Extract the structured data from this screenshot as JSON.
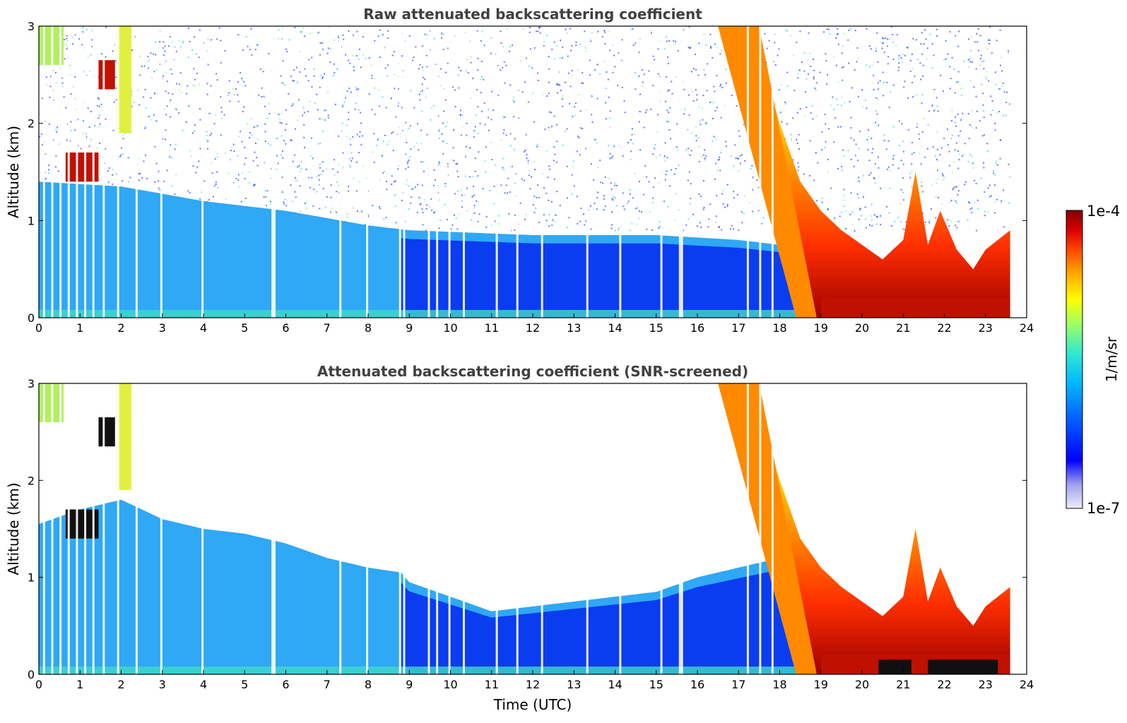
{
  "chart_data": [
    {
      "type": "heatmap",
      "title": "Raw attenuated backscattering coefficient",
      "xlabel": "",
      "ylabel": "Altitude (km)",
      "xlim": [
        0,
        24
      ],
      "ylim": [
        0,
        3
      ],
      "xticks": [
        "0",
        "1",
        "2",
        "3",
        "4",
        "5",
        "6",
        "7",
        "8",
        "9",
        "10",
        "11",
        "12",
        "13",
        "14",
        "15",
        "16",
        "17",
        "18",
        "19",
        "20",
        "21",
        "22",
        "23",
        "24"
      ],
      "yticks": [
        "0",
        "1",
        "2",
        "3"
      ],
      "data_end_hour": 23.6,
      "screened": false,
      "mixing_layer_top_km": [
        [
          0,
          1.4
        ],
        [
          2,
          1.35
        ],
        [
          4,
          1.2
        ],
        [
          6,
          1.1
        ],
        [
          8,
          0.95
        ],
        [
          9,
          0.9
        ],
        [
          12,
          0.85
        ],
        [
          15,
          0.85
        ],
        [
          17,
          0.8
        ],
        [
          18,
          0.75
        ]
      ],
      "plume_top_km": [
        [
          16.5,
          3.0
        ],
        [
          17.5,
          2.7
        ],
        [
          18.0,
          2.0
        ],
        [
          18.5,
          1.4
        ],
        [
          19.0,
          1.1
        ],
        [
          19.5,
          0.9
        ],
        [
          20.0,
          0.75
        ],
        [
          20.5,
          0.6
        ],
        [
          21.0,
          0.8
        ],
        [
          21.3,
          1.5
        ],
        [
          21.6,
          0.75
        ],
        [
          21.9,
          1.1
        ],
        [
          22.3,
          0.7
        ],
        [
          22.7,
          0.5
        ],
        [
          23.0,
          0.7
        ],
        [
          23.6,
          0.9
        ]
      ]
    },
    {
      "type": "heatmap",
      "title": "Attenuated backscattering coefficient (SNR-screened)",
      "xlabel": "Time (UTC)",
      "ylabel": "Altitude (km)",
      "xlim": [
        0,
        24
      ],
      "ylim": [
        0,
        3
      ],
      "xticks": [
        "0",
        "1",
        "2",
        "3",
        "4",
        "5",
        "6",
        "7",
        "8",
        "9",
        "10",
        "11",
        "12",
        "13",
        "14",
        "15",
        "16",
        "17",
        "18",
        "19",
        "20",
        "21",
        "22",
        "23",
        "24"
      ],
      "yticks": [
        "0",
        "1",
        "2",
        "3"
      ],
      "data_end_hour": 23.6,
      "screened": true,
      "mixing_layer_top_km": [
        [
          0,
          1.55
        ],
        [
          1,
          1.7
        ],
        [
          2,
          1.8
        ],
        [
          3,
          1.6
        ],
        [
          4,
          1.5
        ],
        [
          5,
          1.45
        ],
        [
          6,
          1.35
        ],
        [
          7,
          1.2
        ],
        [
          8,
          1.1
        ],
        [
          8.8,
          1.05
        ],
        [
          9,
          0.95
        ],
        [
          10,
          0.8
        ],
        [
          11,
          0.65
        ],
        [
          12,
          0.7
        ],
        [
          13,
          0.75
        ],
        [
          14,
          0.8
        ],
        [
          15,
          0.85
        ],
        [
          16,
          1.0
        ],
        [
          17,
          1.1
        ],
        [
          18,
          1.2
        ]
      ],
      "plume_top_km": [
        [
          16.5,
          3.0
        ],
        [
          17.5,
          2.7
        ],
        [
          18.0,
          2.0
        ],
        [
          18.5,
          1.4
        ],
        [
          19.0,
          1.1
        ],
        [
          19.5,
          0.9
        ],
        [
          20.0,
          0.75
        ],
        [
          20.5,
          0.6
        ],
        [
          21.0,
          0.8
        ],
        [
          21.3,
          1.5
        ],
        [
          21.6,
          0.75
        ],
        [
          21.9,
          1.1
        ],
        [
          22.3,
          0.7
        ],
        [
          22.7,
          0.5
        ],
        [
          23.0,
          0.7
        ],
        [
          23.6,
          0.9
        ]
      ]
    }
  ],
  "colorbar": {
    "label": "1/m/sr",
    "max_label": "1e-4",
    "min_label": "1e-7",
    "colors": [
      "#e6e6f5",
      "#c8c8f0",
      "#9b9bf0",
      "#5050f5",
      "#0000ff",
      "#0050ff",
      "#00a0ff",
      "#20c8ff",
      "#40e0d0",
      "#80ff80",
      "#d0ff30",
      "#ffff00",
      "#ffc000",
      "#ff8000",
      "#ff3000",
      "#d00000",
      "#800000"
    ]
  }
}
